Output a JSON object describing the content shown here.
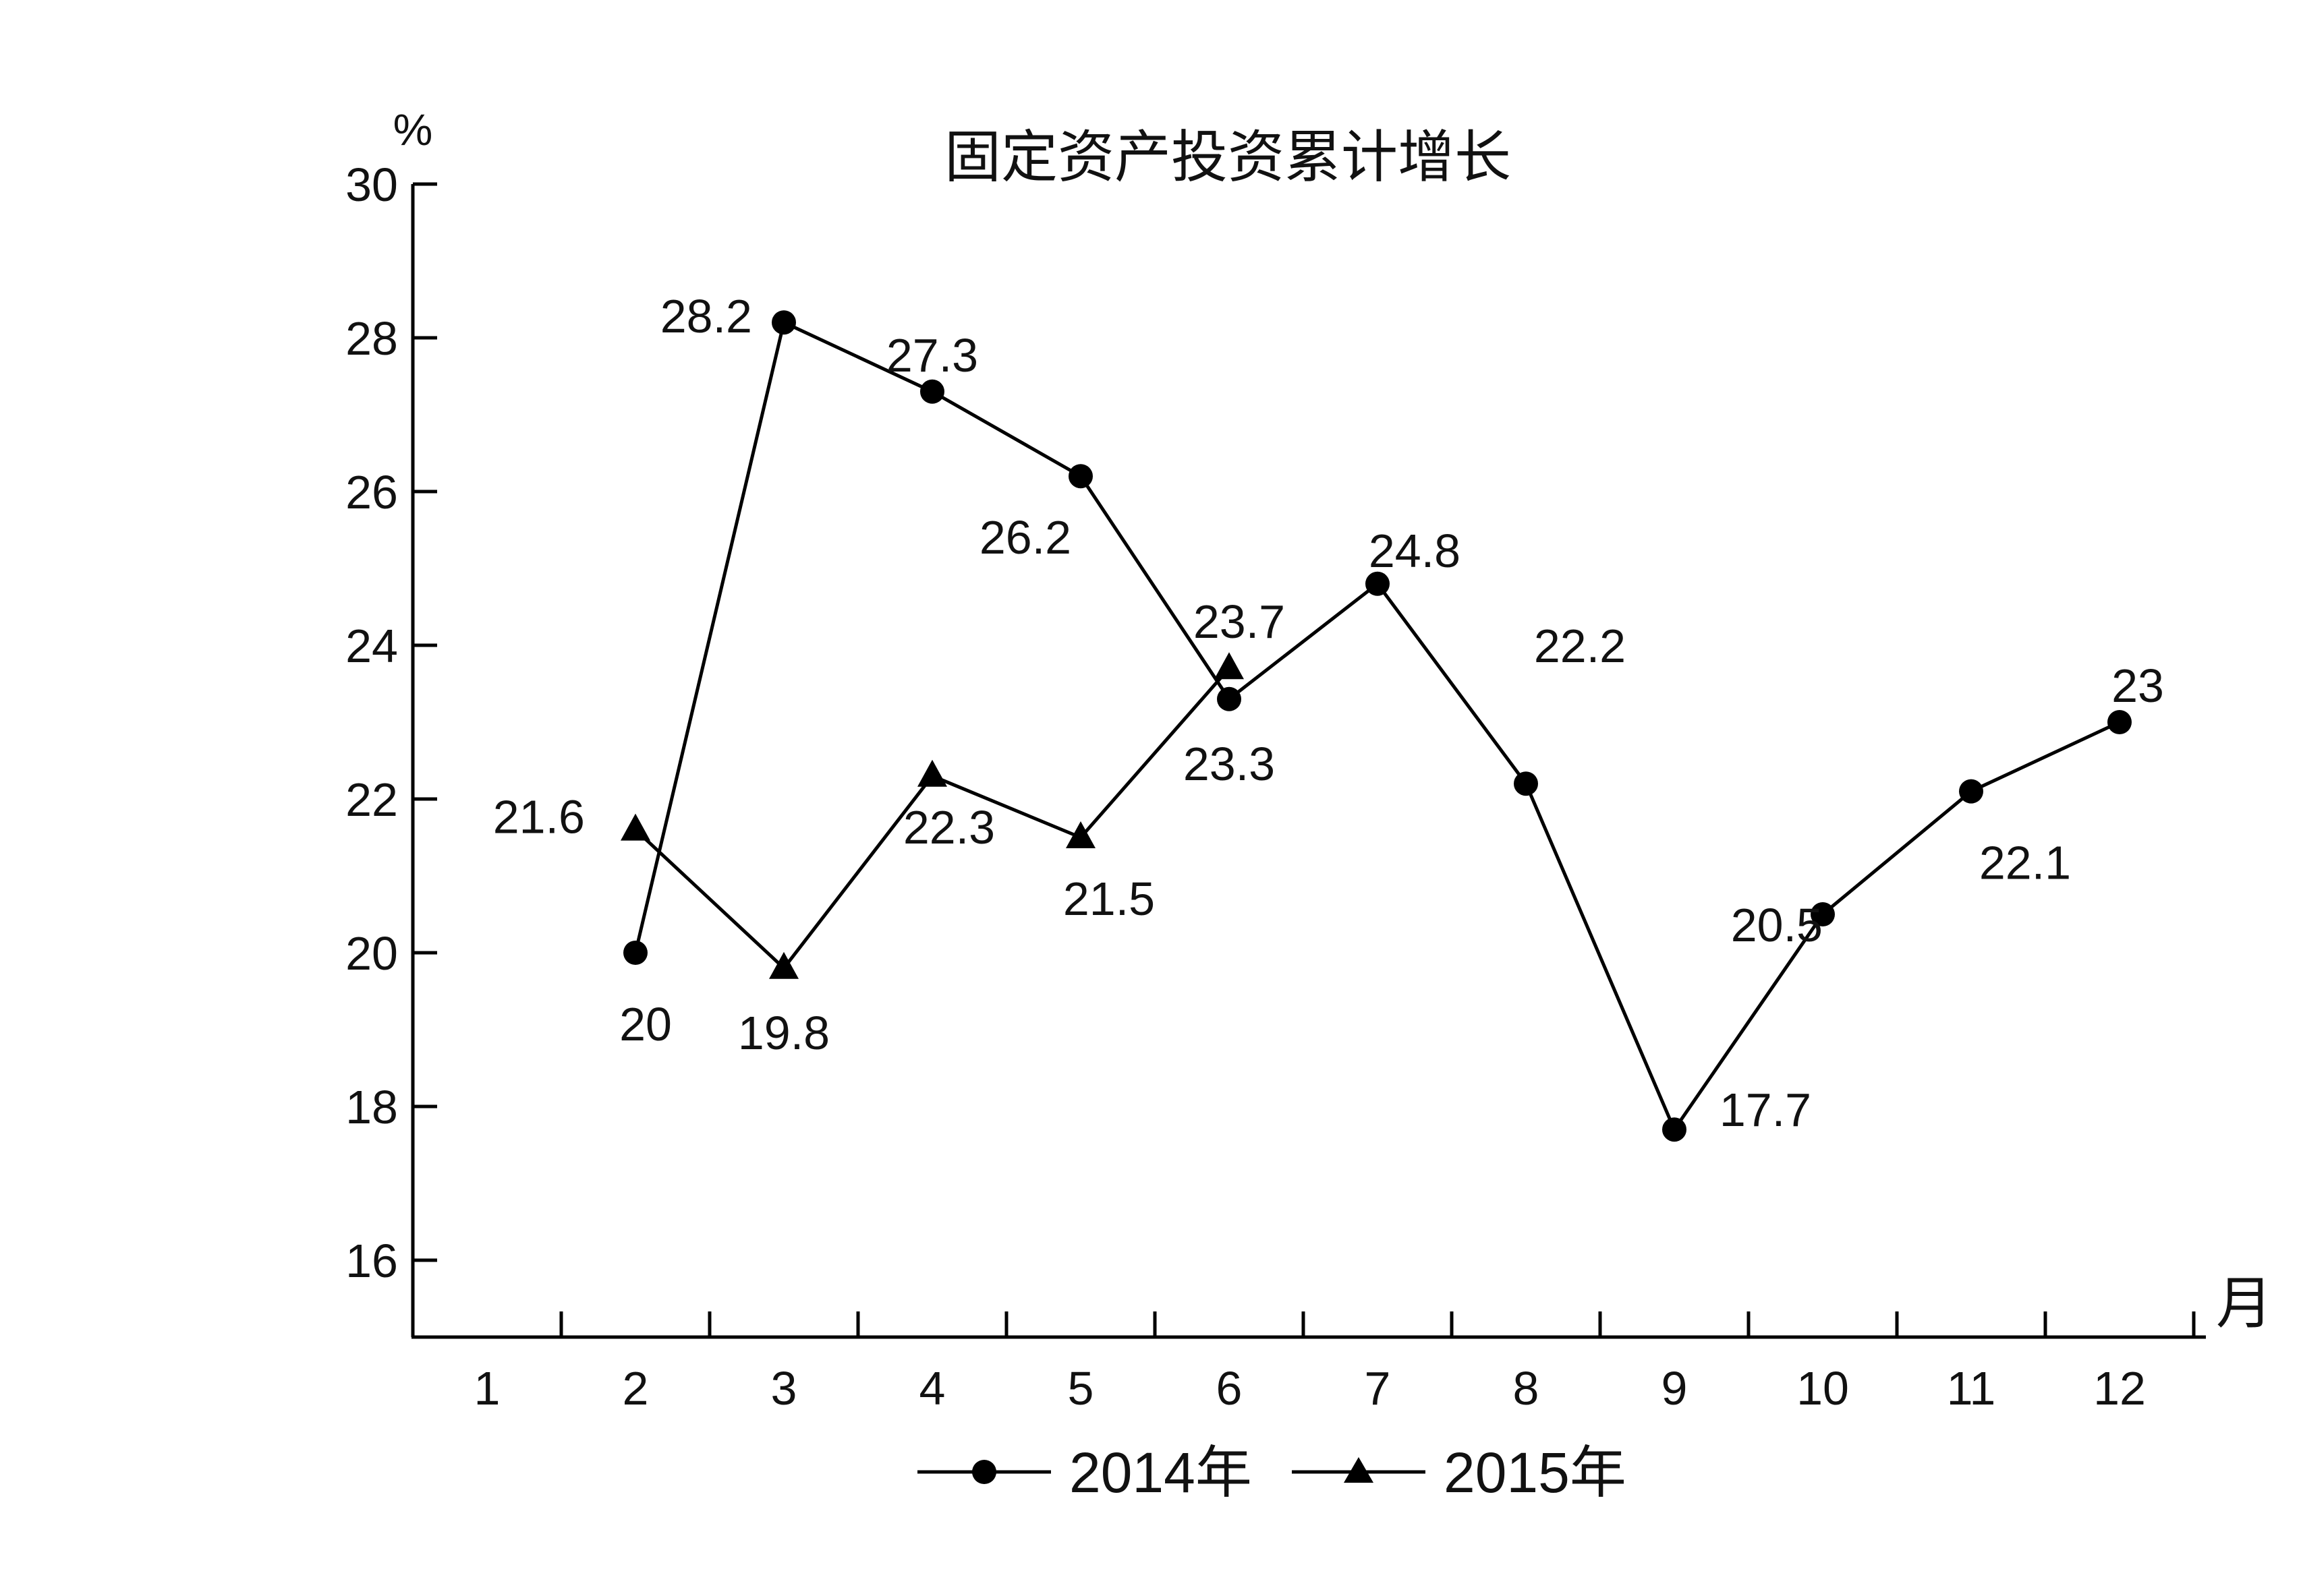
{
  "chart_data": {
    "type": "line",
    "title": "固定资产投资累计增长",
    "y_unit": "%",
    "x_unit": "月",
    "categories": [
      "1",
      "2",
      "3",
      "4",
      "5",
      "6",
      "7",
      "8",
      "9",
      "10",
      "11",
      "12"
    ],
    "yticks": [
      16,
      18,
      20,
      22,
      24,
      26,
      28,
      30
    ],
    "yticks_text": [
      "16",
      "18",
      "20",
      "22",
      "24",
      "26",
      "28",
      "30"
    ],
    "ylim": [
      15,
      30
    ],
    "grid": false,
    "legend_position": "bottom-center",
    "series": [
      {
        "name": "2014年",
        "marker": "circle",
        "color": "#000000",
        "x": [
          2,
          3,
          4,
          5,
          6,
          7,
          8,
          9,
          10,
          11,
          12
        ],
        "values": [
          20,
          28.2,
          27.3,
          26.2,
          23.3,
          24.8,
          22.2,
          17.7,
          20.5,
          22.1,
          23
        ],
        "labels": [
          "20",
          "28.2",
          "27.3",
          "26.2",
          "23.3",
          "24.8",
          "22.2",
          "17.7",
          "20.5",
          "22.1",
          "23"
        ]
      },
      {
        "name": "2015年",
        "marker": "triangle",
        "color": "#000000",
        "x": [
          2,
          3,
          4,
          5,
          6
        ],
        "values": [
          21.6,
          19.8,
          22.3,
          21.5,
          23.7
        ],
        "labels": [
          "21.6",
          "19.8",
          "22.3",
          "21.5",
          "23.7"
        ]
      }
    ]
  }
}
